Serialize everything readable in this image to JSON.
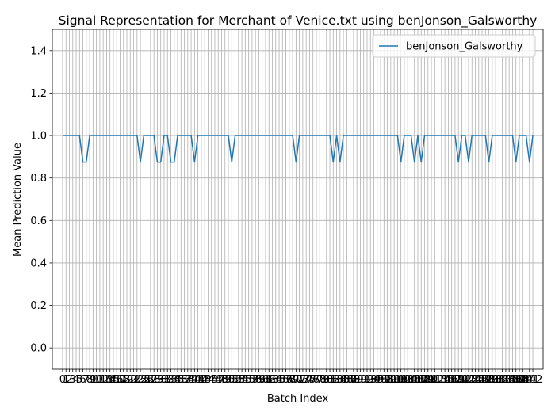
{
  "chart_data": {
    "type": "line",
    "title": "Signal Representation for Merchant of Venice.txt using benJonson_Galsworthy",
    "xlabel": "Batch Index",
    "ylabel": "Mean Prediction Value",
    "ylim": [
      -0.1,
      1.5
    ],
    "xlim": [
      -3.1,
      145.1
    ],
    "yticks": [
      0.0,
      0.2,
      0.4,
      0.6,
      0.8,
      1.0,
      1.2,
      1.4
    ],
    "grid": true,
    "legend_position": "top-right",
    "line_color": "#1f77b4",
    "series": [
      {
        "name": "benJonson_Galsworthy",
        "x_start": 0,
        "x_end": 142,
        "values": [
          1,
          1,
          1,
          1,
          1,
          1,
          0.875,
          0.875,
          1,
          1,
          1,
          1,
          1,
          1,
          1,
          1,
          1,
          1,
          1,
          1,
          1,
          1,
          1,
          0.875,
          1,
          1,
          1,
          1,
          0.875,
          0.875,
          1,
          1,
          0.875,
          0.875,
          1,
          1,
          1,
          1,
          1,
          0.875,
          1,
          1,
          1,
          1,
          1,
          1,
          1,
          1,
          1,
          1,
          0.875,
          1,
          1,
          1,
          1,
          1,
          1,
          1,
          1,
          1,
          1,
          1,
          1,
          1,
          1,
          1,
          1,
          1,
          1,
          0.875,
          1,
          1,
          1,
          1,
          1,
          1,
          1,
          1,
          1,
          1,
          0.875,
          1,
          0.875,
          1,
          1,
          1,
          1,
          1,
          1,
          1,
          1,
          1,
          1,
          1,
          1,
          1,
          1,
          1,
          1,
          1,
          0.875,
          1,
          1,
          1,
          0.875,
          1,
          0.875,
          1,
          1,
          1,
          1,
          1,
          1,
          1,
          1,
          1,
          1,
          0.875,
          1,
          1,
          0.875,
          1,
          1,
          1,
          1,
          1,
          0.875,
          1,
          1,
          1,
          1,
          1,
          1,
          1,
          0.875,
          1,
          1,
          1,
          0.875,
          1
        ]
      }
    ]
  }
}
